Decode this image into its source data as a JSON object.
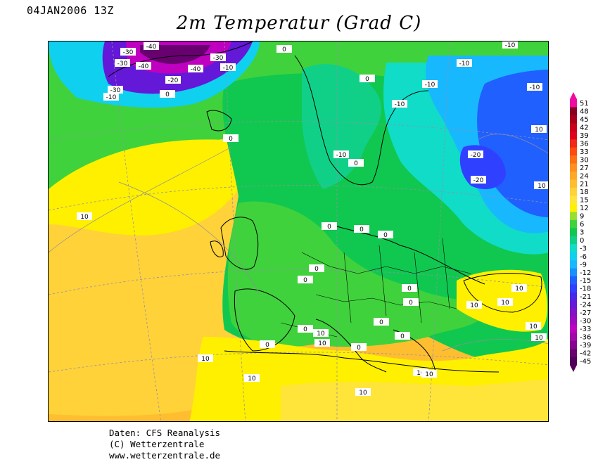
{
  "header": {
    "timestamp": "04JAN2006 13Z",
    "title": "2m Temperatur (Grad C)"
  },
  "legend": {
    "levels": [
      "51",
      "48",
      "45",
      "42",
      "39",
      "36",
      "33",
      "30",
      "27",
      "24",
      "21",
      "18",
      "15",
      "12",
      "9",
      "6",
      "3",
      "0",
      "-3",
      "-6",
      "-9",
      "-12",
      "-15",
      "-18",
      "-21",
      "-24",
      "-27",
      "-30",
      "-33",
      "-36",
      "-39",
      "-42",
      "-45"
    ],
    "colors": [
      "#f00ba0",
      "#8b0020",
      "#a80018",
      "#c80018",
      "#e00020",
      "#f02818",
      "#ff4a10",
      "#ff7010",
      "#ff9020",
      "#ffa828",
      "#ffbe30",
      "#ffd23a",
      "#ffe53a",
      "#fff000",
      "#98e030",
      "#40d23c",
      "#10c850",
      "#10d088",
      "#10dcc8",
      "#10d0f0",
      "#18b8ff",
      "#1890ff",
      "#2060ff",
      "#3040ff",
      "#4828e8",
      "#6418d8",
      "#8410c8",
      "#a008c0",
      "#c000c0",
      "#a008a8",
      "#880090",
      "#680070",
      "#500058"
    ]
  },
  "isotherm_labels": [
    "-40",
    "-40",
    "-30",
    "-30",
    "-30",
    "-30",
    "-40",
    "-20",
    "-10",
    "-10",
    "-10",
    "-10",
    "-10",
    "-10",
    "-10",
    "-20",
    "-20",
    "-10",
    "0",
    "0",
    "0",
    "0",
    "0",
    "0",
    "0",
    "0",
    "0",
    "0",
    "0",
    "0",
    "0",
    "0",
    "0",
    "0",
    "0",
    "10",
    "10",
    "10",
    "10",
    "10",
    "10",
    "10",
    "10",
    "10",
    "10",
    "10",
    "10",
    "10",
    "10",
    "10"
  ],
  "credits": {
    "line1": "Daten: CFS Reanalysis",
    "line2": "(C) Wetterzentrale",
    "line3": "www.wetterzentrale.de"
  }
}
